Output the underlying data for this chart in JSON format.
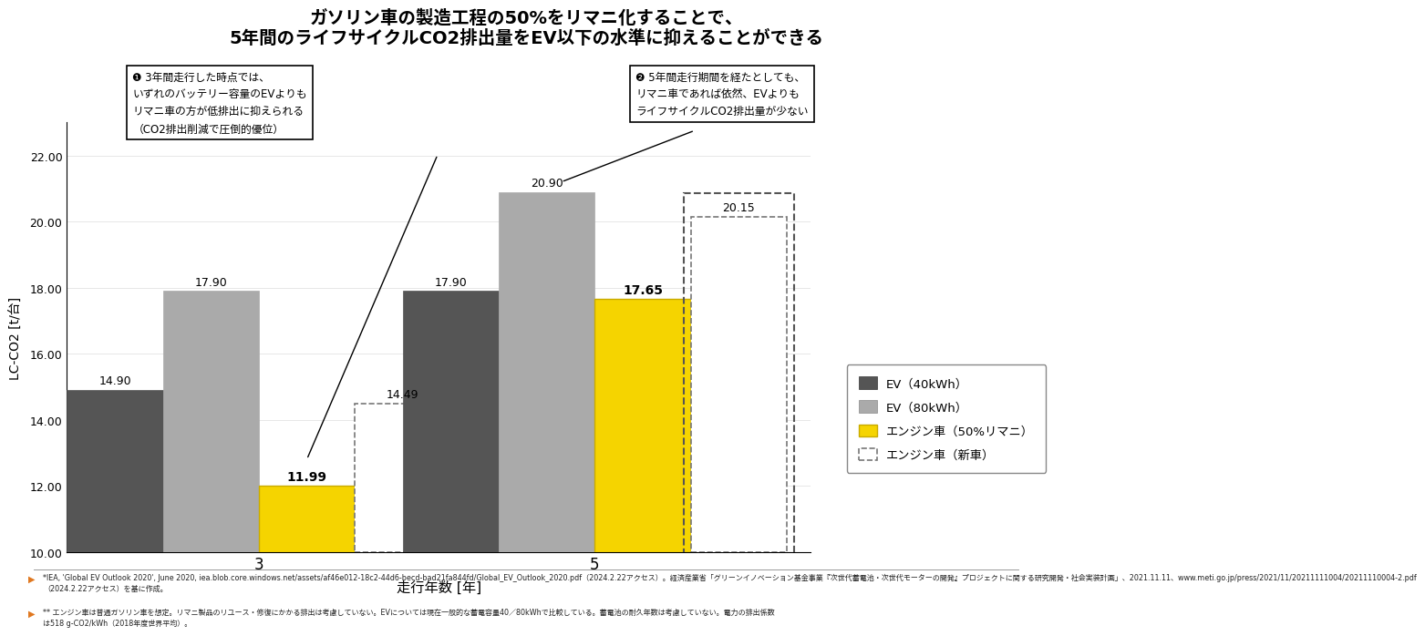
{
  "title_line1": "ガソリン車の製造工程の50%をリマニ化することで、",
  "title_line2": "5年間のライフサイクルCO2排出量をEV以下の水準に抑えることができる",
  "xlabel": "走行年数 [年]",
  "ylabel": "LC-CO2 [t/台]",
  "groups": [
    3,
    5
  ],
  "bars": {
    "EV_40": [
      14.9,
      17.9
    ],
    "EV_80": [
      17.9,
      20.9
    ],
    "Engine_50reman": [
      11.99,
      17.65
    ],
    "Engine_new": [
      14.49,
      20.15
    ]
  },
  "colors": {
    "EV_40": "#555555",
    "EV_80": "#aaaaaa",
    "Engine_50reman": "#f5d400",
    "Engine_new_fill": "#ffffff",
    "Engine_new_edge": "#777777"
  },
  "ylim": [
    10.0,
    23.0
  ],
  "yticks": [
    10.0,
    12.0,
    14.0,
    16.0,
    18.0,
    20.0,
    22.0
  ],
  "legend_labels": [
    "EV（40kWh）",
    "EV（80kWh）",
    "エンジン車（50%リマニ）",
    "エンジン車（新車）"
  ],
  "annotation1_text": "❶ 3年間走行した時点では、\nいずれのバッテリー容量のEVよりも\nリマニ車の方が低排出に抑えられる\n（CO2排出削減で圧倒的優位）",
  "annotation2_text": "❷ 5年間走行期間を経たとしても、\nリマニ車であれば依然、EVよりも\nライフサイクルCO2排出量が少ない",
  "footnote1": "*IEA, 'Global EV Outlook 2020', June 2020, iea.blob.core.windows.net/assets/af46e012-18c2-44d6-becd-bad21fa844fd/Global_EV_Outlook_2020.pdf（2024.2.22アクセス）。経済産業省「グリーンイノベーション基金事業『次世代蓄電池・次世代モーターの開発』プロジェクトに関する研究開発・社会実装計画」、2021.11.11、www.meti.go.jp/press/2021/11/20211111004/20211110004-2.pdf\n（2024.2.22アクセス）を基に作成。",
  "footnote2": "** エンジン車は普通ガソリン車を想定。リマニ製品のリユース・修復にかかる排出は考慮していない。EVについては現在一般的な蓄電容量40／80kWhで比較している。蓄電池の耐久年数は考慮していない。電力の排出係数\nは518 g-CO2/kWh（2018年度世界平均）。",
  "background_color": "#ffffff"
}
